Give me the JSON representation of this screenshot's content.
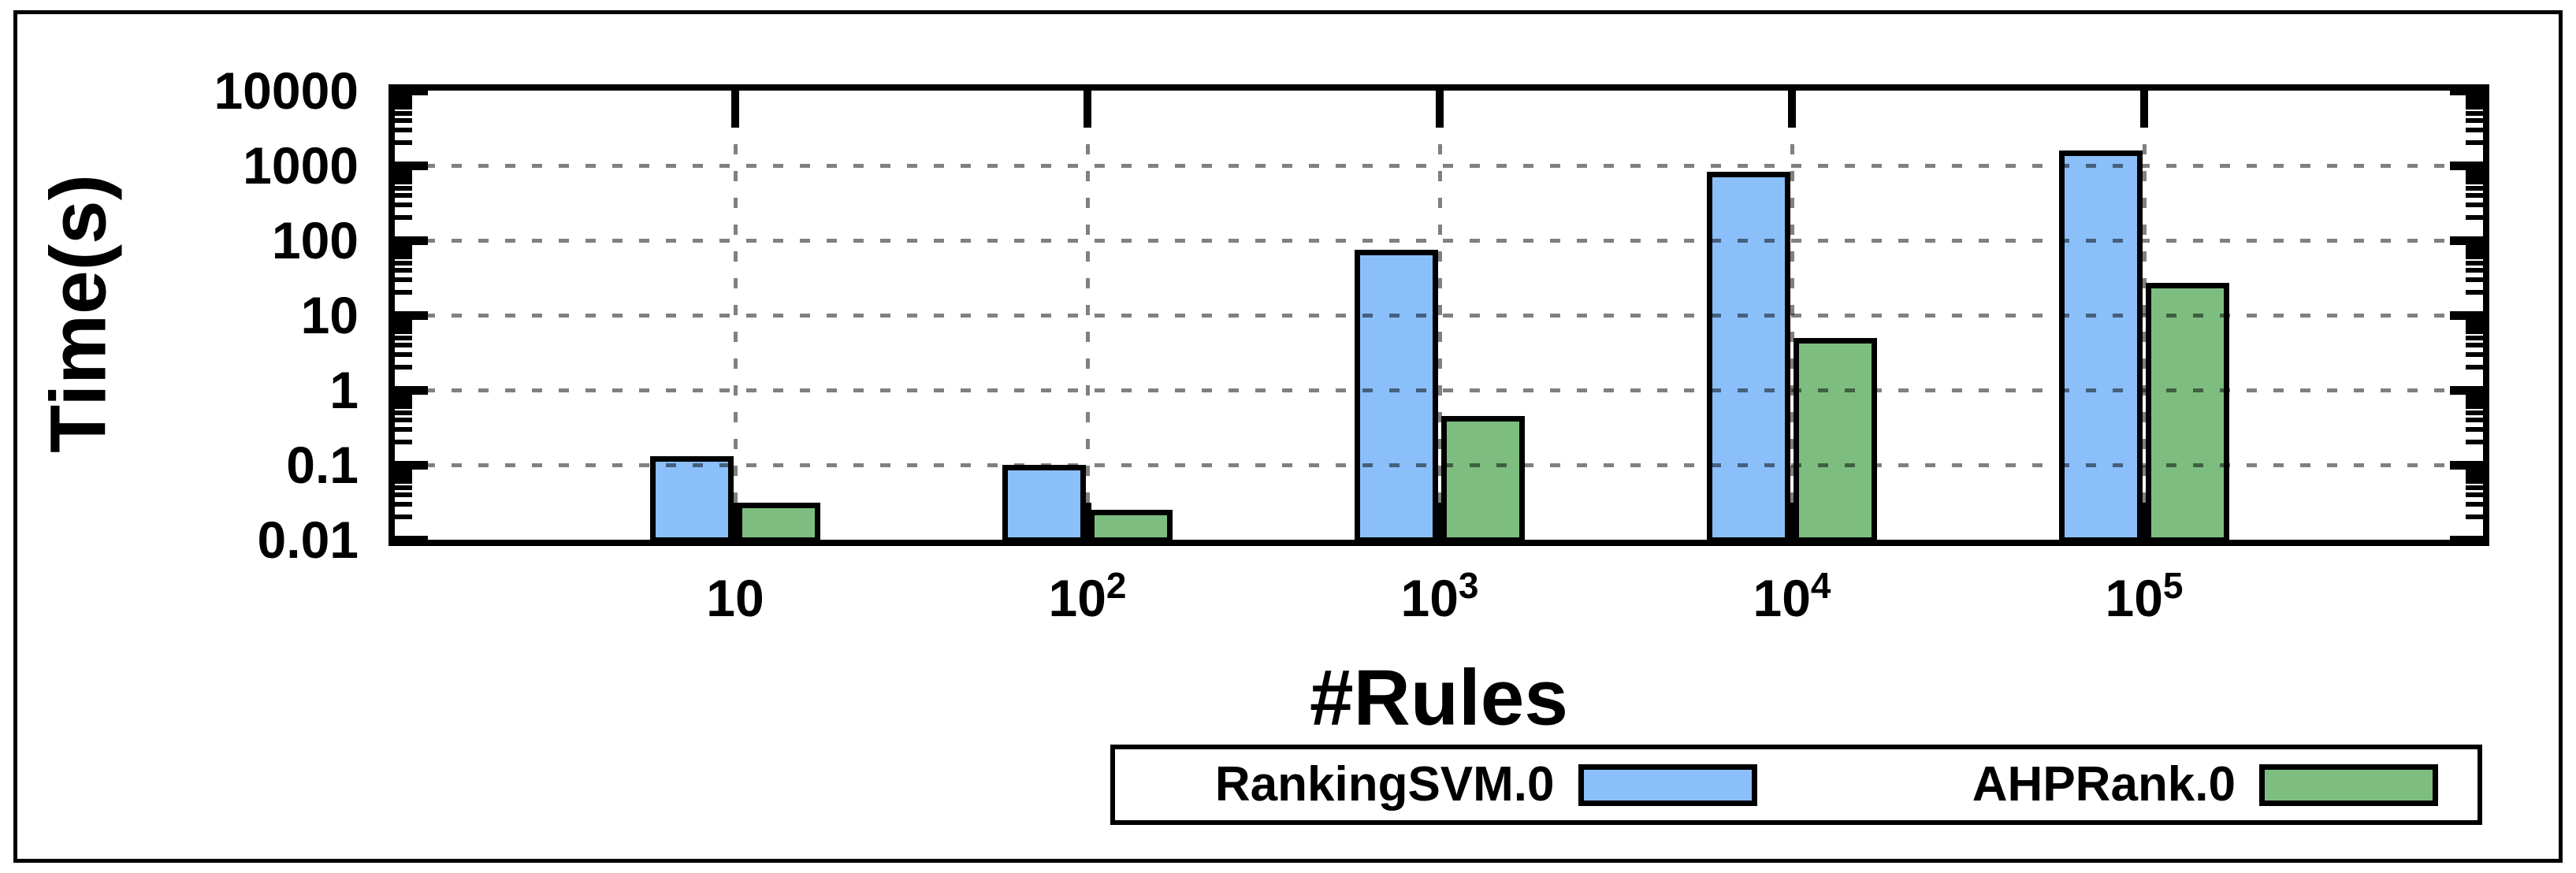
{
  "figure": {
    "background_color": "#ffffff",
    "border_color": "#000000"
  },
  "chart_data": {
    "type": "bar",
    "title": "",
    "xlabel": "#Rules",
    "ylabel": "Time(s)",
    "y_scale": "log",
    "ylim": [
      0.01,
      10000
    ],
    "y_tick_labels": [
      "10000",
      "1000",
      "100",
      "10",
      "1",
      "0.1",
      "0.01"
    ],
    "grid": {
      "horizontal": true,
      "vertical": true,
      "style": "dashed",
      "color": "#808080"
    },
    "legend_position": "bottom",
    "categories": [
      {
        "base": "10",
        "exp": ""
      },
      {
        "base": "10",
        "exp": "2"
      },
      {
        "base": "10",
        "exp": "3"
      },
      {
        "base": "10",
        "exp": "4"
      },
      {
        "base": "10",
        "exp": "5"
      }
    ],
    "series": [
      {
        "name": "RankingSVM.0",
        "color": "#8ABFFA",
        "values": [
          0.13,
          0.1,
          75,
          820,
          1600
        ]
      },
      {
        "name": "AHPRank.0",
        "color": "#7DBE80",
        "values": [
          0.031,
          0.025,
          0.45,
          5,
          27
        ]
      }
    ]
  }
}
